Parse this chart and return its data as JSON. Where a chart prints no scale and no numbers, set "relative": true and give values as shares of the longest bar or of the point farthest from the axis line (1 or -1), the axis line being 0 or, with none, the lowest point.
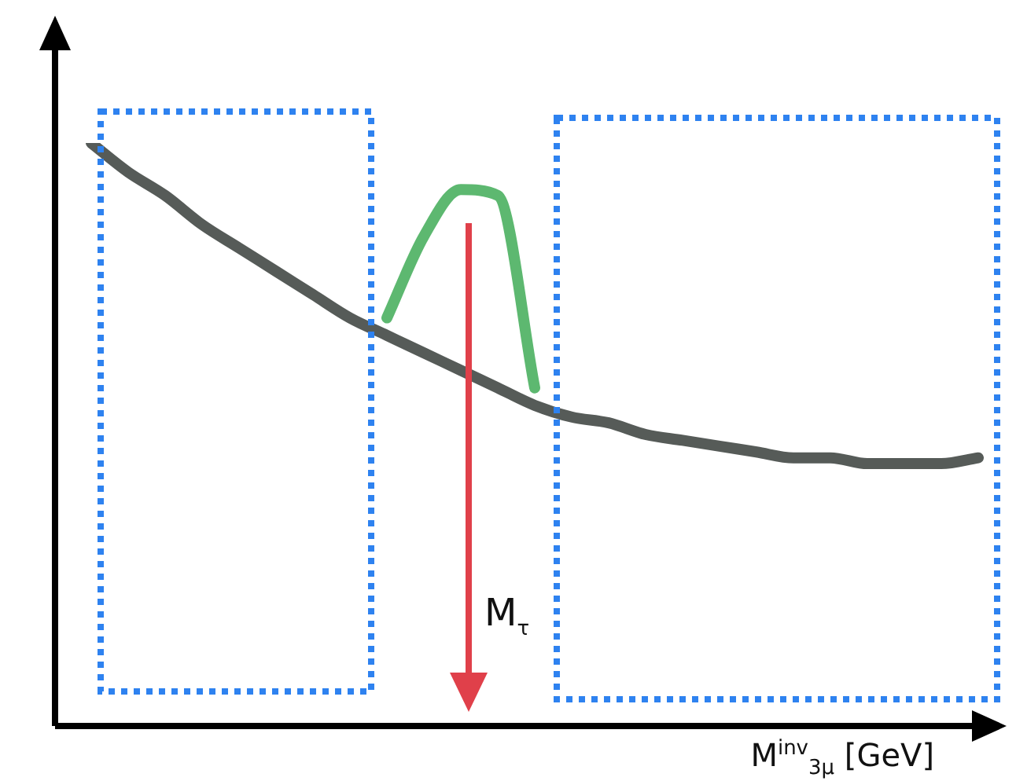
{
  "chart_data": {
    "type": "line",
    "relative": true,
    "xlabel": "M$^{inv}$$_{3μ}$ [GeV]",
    "annotations": [
      "M$_{τ}$"
    ],
    "legend": false,
    "grid": false,
    "marker": "none",
    "tick_labels": false,
    "categories": [
      null,
      null,
      null,
      null,
      null,
      null,
      null,
      null,
      null,
      null,
      null,
      null,
      null,
      null,
      null,
      null,
      null,
      null,
      null,
      null,
      null,
      null,
      null,
      null,
      null
    ],
    "series": [
      {
        "color": "#565b58",
        "values": [
          1.0,
          0.95,
          0.91,
          0.86,
          0.82,
          0.78,
          0.74,
          0.7,
          0.67,
          0.64,
          0.61,
          0.58,
          0.55,
          0.53,
          0.52,
          0.5,
          0.49,
          0.48,
          0.47,
          0.46,
          0.46,
          0.45,
          0.45,
          0.45,
          0.46
        ]
      },
      {
        "color": "#5db870",
        "values": [
          null,
          null,
          null,
          null,
          null,
          null,
          null,
          null,
          0.7,
          0.84,
          0.92,
          0.91,
          0.58,
          null,
          null,
          null,
          null,
          null,
          null,
          null,
          null,
          null,
          null,
          null,
          null
        ]
      }
    ]
  }
}
